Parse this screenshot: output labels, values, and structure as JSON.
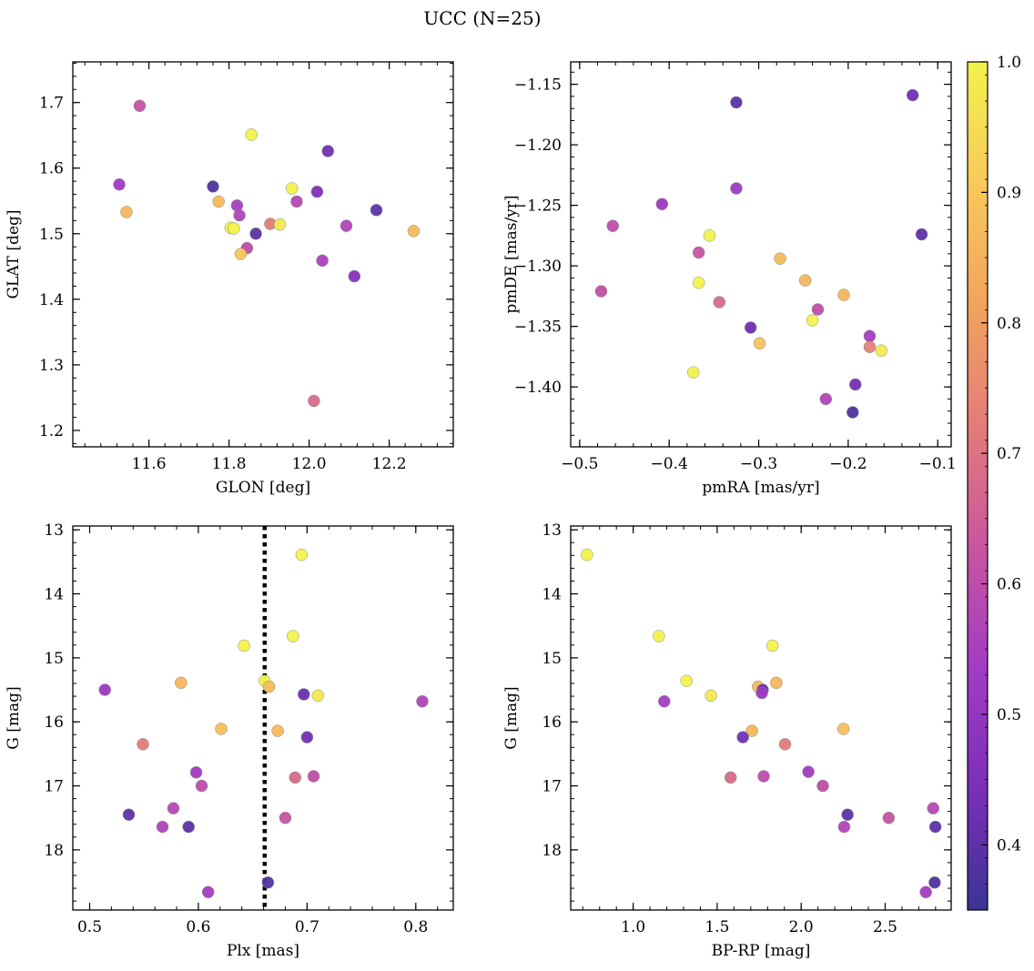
{
  "figure": {
    "title": "UCC (N=25)"
  },
  "colormap": {
    "name": "plasma",
    "range": [
      0.35,
      1.0
    ],
    "ticks": [
      0.4,
      0.5,
      0.6,
      0.7,
      0.8,
      0.9,
      1.0
    ],
    "tick_labels": [
      "0.4",
      "0.5",
      "0.6",
      "0.7",
      "0.8",
      "0.9",
      "1.0"
    ],
    "stops": [
      "#3b3494",
      "#7b2fb8",
      "#a23cc4",
      "#c9559f",
      "#e27d79",
      "#f3a35d",
      "#f8c95a",
      "#f2f24c"
    ]
  },
  "chart_data": [
    {
      "type": "scatter",
      "title": "",
      "xlabel": "GLON [deg]",
      "ylabel": "GLAT [deg]",
      "xlim": [
        11.41,
        12.36
      ],
      "ylim": [
        1.175,
        1.762
      ],
      "x_ticks": [
        11.6,
        11.8,
        12.0,
        12.2
      ],
      "x_tick_labels": [
        "11.6",
        "11.8",
        "12.0",
        "12.2"
      ],
      "y_ticks": [
        1.2,
        1.3,
        1.4,
        1.5,
        1.6,
        1.7
      ],
      "y_tick_labels": [
        "1.2",
        "1.3",
        "1.4",
        "1.5",
        "1.6",
        "1.7"
      ],
      "points": [
        {
          "x": 11.577,
          "y": 1.695,
          "c": 0.62
        },
        {
          "x": 11.856,
          "y": 1.651,
          "c": 1.0
        },
        {
          "x": 12.047,
          "y": 1.626,
          "c": 0.43
        },
        {
          "x": 11.526,
          "y": 1.575,
          "c": 0.53
        },
        {
          "x": 11.76,
          "y": 1.572,
          "c": 0.38
        },
        {
          "x": 11.957,
          "y": 1.569,
          "c": 1.0
        },
        {
          "x": 12.02,
          "y": 1.564,
          "c": 0.45
        },
        {
          "x": 11.774,
          "y": 1.549,
          "c": 0.87
        },
        {
          "x": 11.969,
          "y": 1.549,
          "c": 0.58
        },
        {
          "x": 11.82,
          "y": 1.543,
          "c": 0.54
        },
        {
          "x": 12.168,
          "y": 1.536,
          "c": 0.4
        },
        {
          "x": 11.544,
          "y": 1.533,
          "c": 0.86
        },
        {
          "x": 11.826,
          "y": 1.528,
          "c": 0.57
        },
        {
          "x": 11.903,
          "y": 1.515,
          "c": 0.72
        },
        {
          "x": 11.927,
          "y": 1.514,
          "c": 0.98
        },
        {
          "x": 12.093,
          "y": 1.512,
          "c": 0.57
        },
        {
          "x": 11.804,
          "y": 1.509,
          "c": 1.0
        },
        {
          "x": 11.812,
          "y": 1.508,
          "c": 1.0
        },
        {
          "x": 12.261,
          "y": 1.504,
          "c": 0.87
        },
        {
          "x": 11.867,
          "y": 1.5,
          "c": 0.4
        },
        {
          "x": 11.845,
          "y": 1.478,
          "c": 0.6
        },
        {
          "x": 11.829,
          "y": 1.469,
          "c": 0.9
        },
        {
          "x": 12.033,
          "y": 1.459,
          "c": 0.56
        },
        {
          "x": 12.113,
          "y": 1.435,
          "c": 0.47
        },
        {
          "x": 12.012,
          "y": 1.245,
          "c": 0.68
        }
      ]
    },
    {
      "type": "scatter",
      "title": "",
      "xlabel": "pmRA [mas/yr]",
      "ylabel": "pmDE [mas/yr]",
      "xlim": [
        -0.51,
        -0.085
      ],
      "ylim": [
        -1.4495,
        -1.1315
      ],
      "x_ticks": [
        -0.5,
        -0.4,
        -0.3,
        -0.2,
        -0.1
      ],
      "x_tick_labels": [
        "−0.5",
        "−0.4",
        "−0.3",
        "−0.2",
        "−0.1"
      ],
      "y_ticks": [
        -1.4,
        -1.35,
        -1.3,
        -1.25,
        -1.2,
        -1.15
      ],
      "y_tick_labels": [
        "−1.40",
        "−1.35",
        "−1.30",
        "−1.25",
        "−1.20",
        "−1.15"
      ],
      "points": [
        {
          "x": -0.325,
          "y": -1.165,
          "c": 0.4
        },
        {
          "x": -0.128,
          "y": -1.159,
          "c": 0.43
        },
        {
          "x": -0.325,
          "y": -1.236,
          "c": 0.53
        },
        {
          "x": -0.408,
          "y": -1.249,
          "c": 0.52
        },
        {
          "x": -0.463,
          "y": -1.267,
          "c": 0.6
        },
        {
          "x": -0.355,
          "y": -1.275,
          "c": 1.0
        },
        {
          "x": -0.118,
          "y": -1.274,
          "c": 0.4
        },
        {
          "x": -0.367,
          "y": -1.289,
          "c": 0.62
        },
        {
          "x": -0.276,
          "y": -1.294,
          "c": 0.87
        },
        {
          "x": -0.248,
          "y": -1.312,
          "c": 0.86
        },
        {
          "x": -0.367,
          "y": -1.314,
          "c": 1.0
        },
        {
          "x": -0.476,
          "y": -1.321,
          "c": 0.61
        },
        {
          "x": -0.205,
          "y": -1.324,
          "c": 0.86
        },
        {
          "x": -0.344,
          "y": -1.33,
          "c": 0.68
        },
        {
          "x": -0.234,
          "y": -1.336,
          "c": 0.6
        },
        {
          "x": -0.24,
          "y": -1.345,
          "c": 1.0
        },
        {
          "x": -0.309,
          "y": -1.351,
          "c": 0.42
        },
        {
          "x": -0.176,
          "y": -1.358,
          "c": 0.54
        },
        {
          "x": -0.299,
          "y": -1.364,
          "c": 0.89
        },
        {
          "x": -0.176,
          "y": -1.367,
          "c": 0.73
        },
        {
          "x": -0.163,
          "y": -1.37,
          "c": 0.98
        },
        {
          "x": -0.373,
          "y": -1.388,
          "c": 1.0
        },
        {
          "x": -0.192,
          "y": -1.398,
          "c": 0.43
        },
        {
          "x": -0.225,
          "y": -1.41,
          "c": 0.57
        },
        {
          "x": -0.195,
          "y": -1.421,
          "c": 0.38
        }
      ]
    },
    {
      "type": "scatter",
      "title": "",
      "xlabel": "Plx [mas]",
      "ylabel": "G [mag]",
      "xlim": [
        0.4845,
        0.8345
      ],
      "ylim": [
        18.94,
        12.94
      ],
      "y_inverted": true,
      "x_ticks": [
        0.5,
        0.6,
        0.7,
        0.8
      ],
      "x_tick_labels": [
        "0.5",
        "0.6",
        "0.7",
        "0.8"
      ],
      "y_ticks": [
        13,
        14,
        15,
        16,
        17,
        18
      ],
      "y_tick_labels": [
        "13",
        "14",
        "15",
        "16",
        "17",
        "18"
      ],
      "vline": {
        "x": 0.661,
        "style": "dotted"
      },
      "points": [
        {
          "x": 0.695,
          "y": 13.39,
          "c": 1.0
        },
        {
          "x": 0.687,
          "y": 14.66,
          "c": 1.0
        },
        {
          "x": 0.642,
          "y": 14.81,
          "c": 1.0
        },
        {
          "x": 0.661,
          "y": 15.36,
          "c": 1.0
        },
        {
          "x": 0.584,
          "y": 15.39,
          "c": 0.86
        },
        {
          "x": 0.665,
          "y": 15.45,
          "c": 0.87
        },
        {
          "x": 0.514,
          "y": 15.5,
          "c": 0.52
        },
        {
          "x": 0.697,
          "y": 15.57,
          "c": 0.42
        },
        {
          "x": 0.71,
          "y": 15.59,
          "c": 0.98
        },
        {
          "x": 0.806,
          "y": 15.68,
          "c": 0.57
        },
        {
          "x": 0.621,
          "y": 16.11,
          "c": 0.88
        },
        {
          "x": 0.673,
          "y": 16.14,
          "c": 0.87
        },
        {
          "x": 0.7,
          "y": 16.24,
          "c": 0.43
        },
        {
          "x": 0.549,
          "y": 16.35,
          "c": 0.72
        },
        {
          "x": 0.598,
          "y": 16.79,
          "c": 0.53
        },
        {
          "x": 0.706,
          "y": 16.85,
          "c": 0.6
        },
        {
          "x": 0.689,
          "y": 16.87,
          "c": 0.68
        },
        {
          "x": 0.603,
          "y": 17.0,
          "c": 0.6
        },
        {
          "x": 0.577,
          "y": 17.35,
          "c": 0.58
        },
        {
          "x": 0.536,
          "y": 17.45,
          "c": 0.4
        },
        {
          "x": 0.68,
          "y": 17.5,
          "c": 0.62
        },
        {
          "x": 0.567,
          "y": 17.64,
          "c": 0.57
        },
        {
          "x": 0.591,
          "y": 17.64,
          "c": 0.4
        },
        {
          "x": 0.664,
          "y": 18.51,
          "c": 0.38
        },
        {
          "x": 0.609,
          "y": 18.66,
          "c": 0.54
        }
      ]
    },
    {
      "type": "scatter",
      "title": "",
      "xlabel": "BP-RP [mag]",
      "ylabel": "G [mag]",
      "xlim": [
        0.628,
        2.893
      ],
      "ylim": [
        18.94,
        12.94
      ],
      "y_inverted": true,
      "x_ticks": [
        1.0,
        1.5,
        2.0,
        2.5
      ],
      "x_tick_labels": [
        "1.0",
        "1.5",
        "2.0",
        "2.5"
      ],
      "y_ticks": [
        13,
        14,
        15,
        16,
        17,
        18
      ],
      "y_tick_labels": [
        "13",
        "14",
        "15",
        "16",
        "17",
        "18"
      ],
      "points": [
        {
          "x": 0.725,
          "y": 13.39,
          "c": 1.0
        },
        {
          "x": 1.153,
          "y": 14.66,
          "c": 1.0
        },
        {
          "x": 1.829,
          "y": 14.81,
          "c": 1.0
        },
        {
          "x": 1.317,
          "y": 15.36,
          "c": 1.0
        },
        {
          "x": 1.852,
          "y": 15.39,
          "c": 0.86
        },
        {
          "x": 1.743,
          "y": 15.45,
          "c": 0.87
        },
        {
          "x": 1.771,
          "y": 15.5,
          "c": 0.42
        },
        {
          "x": 1.766,
          "y": 15.55,
          "c": 0.52
        },
        {
          "x": 1.463,
          "y": 15.59,
          "c": 0.98
        },
        {
          "x": 1.185,
          "y": 15.68,
          "c": 0.54
        },
        {
          "x": 2.252,
          "y": 16.11,
          "c": 0.88
        },
        {
          "x": 1.707,
          "y": 16.14,
          "c": 0.86
        },
        {
          "x": 1.653,
          "y": 16.24,
          "c": 0.43
        },
        {
          "x": 1.904,
          "y": 16.35,
          "c": 0.72
        },
        {
          "x": 2.043,
          "y": 16.78,
          "c": 0.53
        },
        {
          "x": 1.777,
          "y": 16.85,
          "c": 0.6
        },
        {
          "x": 1.58,
          "y": 16.87,
          "c": 0.68
        },
        {
          "x": 2.129,
          "y": 17.0,
          "c": 0.6
        },
        {
          "x": 2.786,
          "y": 17.35,
          "c": 0.58
        },
        {
          "x": 2.276,
          "y": 17.45,
          "c": 0.4
        },
        {
          "x": 2.521,
          "y": 17.5,
          "c": 0.62
        },
        {
          "x": 2.256,
          "y": 17.64,
          "c": 0.57
        },
        {
          "x": 2.799,
          "y": 17.64,
          "c": 0.4
        },
        {
          "x": 2.795,
          "y": 18.51,
          "c": 0.38
        },
        {
          "x": 2.742,
          "y": 18.66,
          "c": 0.54
        }
      ]
    }
  ]
}
